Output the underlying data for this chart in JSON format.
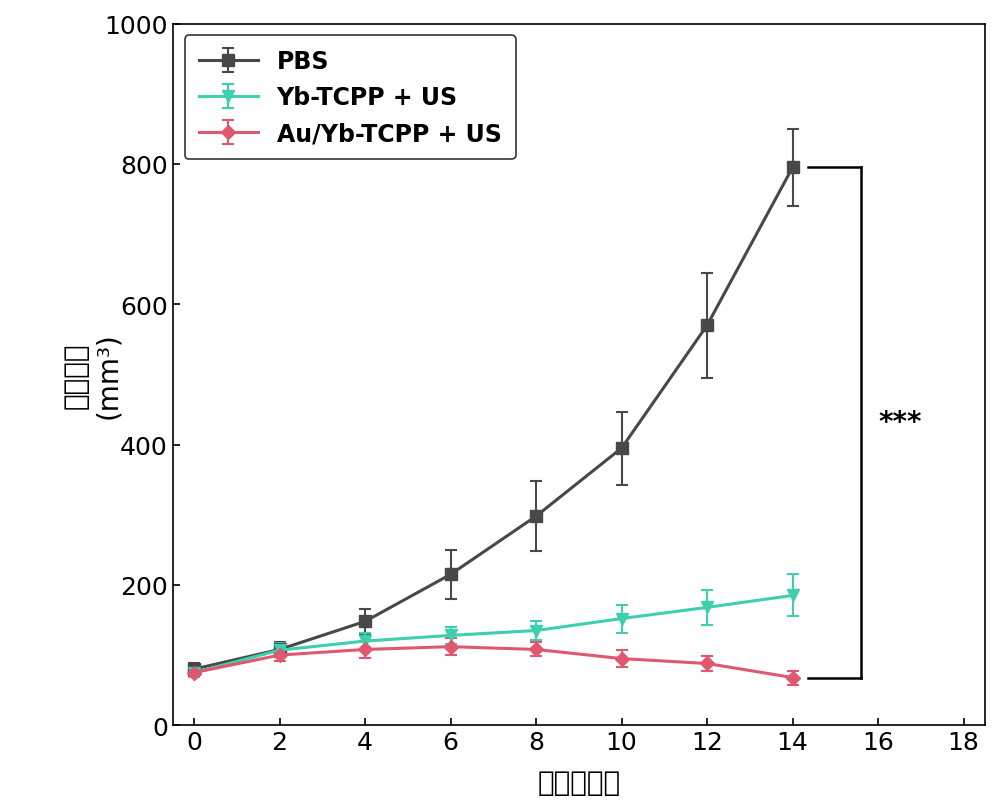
{
  "x": [
    0,
    2,
    4,
    6,
    8,
    10,
    12,
    14
  ],
  "pbs_y": [
    80,
    108,
    148,
    215,
    298,
    395,
    570,
    795
  ],
  "pbs_yerr": [
    8,
    10,
    18,
    35,
    50,
    52,
    75,
    55
  ],
  "yb_y": [
    75,
    107,
    120,
    128,
    135,
    152,
    168,
    185
  ],
  "yb_yerr": [
    6,
    10,
    12,
    12,
    13,
    20,
    25,
    30
  ],
  "au_y": [
    75,
    100,
    108,
    112,
    108,
    95,
    88,
    68
  ],
  "au_yerr": [
    5,
    8,
    12,
    12,
    10,
    12,
    10,
    10
  ],
  "pbs_color": "#484848",
  "yb_color": "#3ECFAC",
  "au_color": "#E05870",
  "pbs_label": "PBS",
  "yb_label": "Yb-TCPP + US",
  "au_label": "Au/Yb-TCPP + US",
  "xlabel_cn": "时间（天）",
  "ylabel_cn": "肿瘾体积",
  "ylabel_en": "(mm³)",
  "xlim": [
    -0.5,
    18.5
  ],
  "ylim": [
    0,
    1000
  ],
  "xticks": [
    0,
    2,
    4,
    6,
    8,
    10,
    12,
    14,
    16,
    18
  ],
  "yticks": [
    0,
    200,
    400,
    600,
    800,
    1000
  ],
  "bracket_pbs_y": 795,
  "bracket_au_y": 68,
  "bx1": 14.35,
  "bx2": 15.6,
  "significance": "***",
  "label_fontsize": 20,
  "tick_fontsize": 18,
  "legend_fontsize": 17
}
